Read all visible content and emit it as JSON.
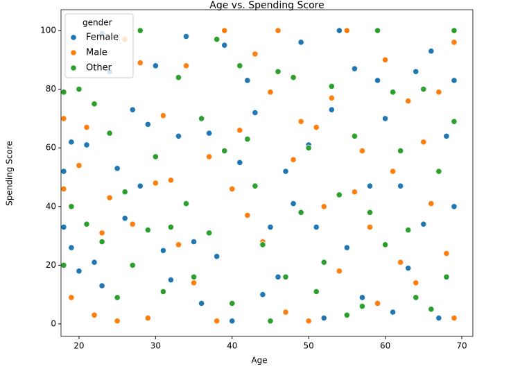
{
  "chart_data": {
    "type": "scatter",
    "title": "Age vs. Spending Score",
    "x_label": "Age",
    "y_label": "Spending Score",
    "xlim": [
      17.65,
      71.45
    ],
    "ylim": [
      -4.26,
      107.1
    ],
    "xticks": [
      20,
      30,
      40,
      50,
      60,
      70
    ],
    "yticks": [
      0,
      20,
      40,
      60,
      80,
      100
    ],
    "grid": false,
    "legend_title": "gender",
    "legend_loc": "upper left",
    "series": [
      {
        "name": "Female",
        "color": "#1f77b4",
        "x": [
          18,
          18,
          19,
          19,
          20,
          21,
          22,
          23,
          23,
          24,
          25,
          26,
          27,
          28,
          29,
          30,
          31,
          32,
          33,
          34,
          35,
          36,
          37,
          38,
          39,
          40,
          41,
          42,
          43,
          44,
          45,
          46,
          47,
          48,
          49,
          50,
          51,
          52,
          53,
          54,
          55,
          56,
          57,
          58,
          59,
          60,
          61,
          62,
          63,
          64,
          65,
          66,
          67,
          68,
          69,
          69
        ],
        "values": [
          52,
          33,
          62,
          26,
          18,
          61,
          21,
          99,
          13,
          86,
          53,
          36,
          73,
          47,
          68,
          88,
          25,
          15,
          64,
          98,
          28,
          7,
          65,
          23,
          95,
          1,
          55,
          83,
          72,
          10,
          33,
          16,
          52,
          41,
          96,
          61,
          33,
          2,
          73,
          100,
          26,
          87,
          9,
          47,
          83,
          70,
          4,
          47,
          19,
          86,
          34,
          93,
          2,
          64,
          40,
          83
        ]
      },
      {
        "name": "Male",
        "color": "#ff7f0e",
        "x": [
          18,
          18,
          19,
          20,
          21,
          22,
          23,
          24,
          25,
          26,
          27,
          28,
          29,
          30,
          31,
          32,
          33,
          34,
          35,
          37,
          38,
          39,
          40,
          41,
          42,
          43,
          44,
          45,
          46,
          47,
          48,
          49,
          50,
          51,
          52,
          53,
          54,
          55,
          56,
          57,
          58,
          59,
          60,
          61,
          62,
          63,
          64,
          65,
          66,
          67,
          68,
          69,
          69
        ],
        "values": [
          70,
          46,
          9,
          54,
          67,
          3,
          31,
          43,
          1,
          97,
          34,
          89,
          2,
          48,
          71,
          49,
          27,
          88,
          14,
          57,
          1,
          100,
          46,
          66,
          37,
          92,
          28,
          79,
          100,
          4,
          56,
          69,
          1,
          67,
          40,
          77,
          18,
          100,
          45,
          59,
          33,
          7,
          90,
          52,
          21,
          76,
          14,
          62,
          41,
          79,
          24,
          2,
          96
        ]
      },
      {
        "name": "Other",
        "color": "#2ca02c",
        "x": [
          18,
          18,
          19,
          20,
          21,
          22,
          23,
          24,
          25,
          26,
          27,
          28,
          29,
          30,
          31,
          32,
          33,
          34,
          35,
          36,
          37,
          38,
          39,
          40,
          41,
          42,
          43,
          44,
          45,
          46,
          47,
          48,
          49,
          50,
          51,
          52,
          53,
          54,
          55,
          56,
          57,
          58,
          59,
          60,
          61,
          62,
          63,
          64,
          65,
          66,
          67,
          68,
          69,
          69
        ],
        "values": [
          20,
          79,
          40,
          80,
          34,
          75,
          28,
          65,
          9,
          45,
          20,
          100,
          32,
          57,
          11,
          33,
          84,
          41,
          16,
          70,
          31,
          97,
          59,
          7,
          88,
          63,
          47,
          27,
          1,
          86,
          16,
          84,
          38,
          60,
          11,
          21,
          81,
          44,
          3,
          64,
          6,
          38,
          100,
          27,
          79,
          59,
          32,
          9,
          80,
          5,
          52,
          16,
          100,
          69
        ]
      }
    ]
  }
}
